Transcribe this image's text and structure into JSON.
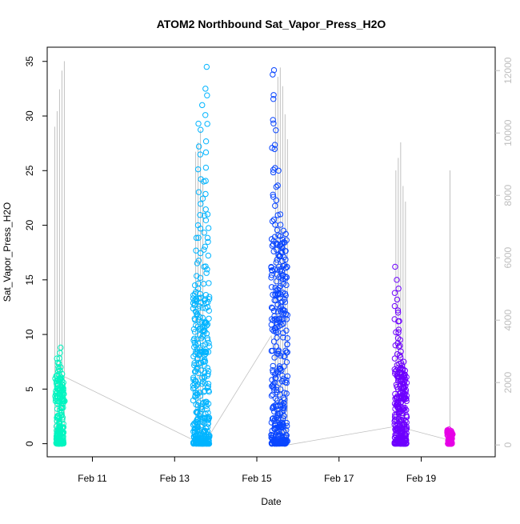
{
  "chart_data": {
    "type": "scatter",
    "title": "ATOM2 Northbound Sat_Vapor_Press_H2O",
    "xlabel": "Date",
    "ylabel": "Sat_Vapor_Press_H2O",
    "x_ticks": [
      "Feb 11",
      "Feb 13",
      "Feb 15",
      "Feb 17",
      "Feb 19"
    ],
    "x_tick_days": [
      11,
      13,
      15,
      17,
      19
    ],
    "xlim_days": [
      9.9,
      20.8
    ],
    "y_ticks": [
      "0",
      "5",
      "10",
      "15",
      "20",
      "25",
      "30",
      "35"
    ],
    "ylim": [
      -1.2,
      36.3
    ],
    "right_axis": {
      "ticks": [
        "0",
        "2000",
        "4000",
        "6000",
        "8000",
        "10000",
        "12000"
      ],
      "ylim": [
        -380,
        12750
      ],
      "color": "#bebebe"
    },
    "grid": false,
    "series": [
      {
        "color": "#00f5c0",
        "x_range": [
          10.12,
          10.3
        ],
        "y_max": 9.0,
        "y_dense_top": 6.5,
        "x_points": [
          10.12,
          10.16,
          10.2,
          10.24,
          10.28,
          10.3
        ],
        "y_points": [
          6.2,
          7.8,
          8.8,
          7.0,
          5.2,
          3.9
        ]
      },
      {
        "color": "#00b4ff",
        "x_range": [
          13.45,
          13.85
        ],
        "y_max": 34.5,
        "y_dense_top": 14,
        "x_points": [
          13.5,
          13.55,
          13.6,
          13.65,
          13.7,
          13.75,
          13.78,
          13.82
        ],
        "y_points": [
          14.5,
          20,
          29.3,
          31,
          24,
          32.5,
          34.5,
          21
        ]
      },
      {
        "color": "#0a46ff",
        "x_range": [
          15.35,
          15.75
        ],
        "y_max": 34.2,
        "y_dense_top": 19,
        "x_points": [
          15.38,
          15.42,
          15.46,
          15.5,
          15.55,
          15.6,
          15.65,
          15.7
        ],
        "y_points": [
          33.8,
          34.2,
          28.7,
          25,
          21,
          19,
          19.5,
          19.2
        ]
      },
      {
        "color": "#6e00ff",
        "x_range": [
          18.35,
          18.65
        ],
        "y_max": 16.2,
        "y_dense_top": 7,
        "x_points": [
          18.38,
          18.42,
          18.46,
          18.5,
          18.55,
          18.6
        ],
        "y_points": [
          16.2,
          14.2,
          12,
          9.5,
          7.5,
          6
        ]
      },
      {
        "color": "#e600e6",
        "x_range": [
          19.65,
          19.75
        ],
        "y_max": 1.3,
        "y_dense_top": 1.2,
        "x_points": [
          19.66,
          19.7,
          19.74
        ],
        "y_points": [
          1.3,
          1.1,
          0.9
        ]
      }
    ],
    "right_series": {
      "name": "",
      "color": "#c0c0c0",
      "spikes": [
        {
          "x": 10.2,
          "values": [
            10200,
            10700,
            11400,
            12000,
            12300
          ]
        },
        {
          "x": 13.6,
          "values": [
            9400,
            9700,
            10100,
            8600
          ]
        },
        {
          "x": 15.6,
          "values": [
            11200,
            11800,
            12100,
            11500,
            10600,
            9800
          ]
        },
        {
          "x": 18.5,
          "values": [
            8800,
            9200,
            9700,
            8300,
            7800
          ]
        },
        {
          "x": 19.7,
          "values": [
            8800
          ]
        }
      ],
      "baseline_path": [
        {
          "x": 10.3,
          "y": 2200
        },
        {
          "x": 13.7,
          "y": 0
        },
        {
          "x": 15.35,
          "y": 3500
        },
        {
          "x": 15.75,
          "y": 0
        },
        {
          "x": 18.4,
          "y": 600
        },
        {
          "x": 19.7,
          "y": 150
        }
      ]
    }
  }
}
